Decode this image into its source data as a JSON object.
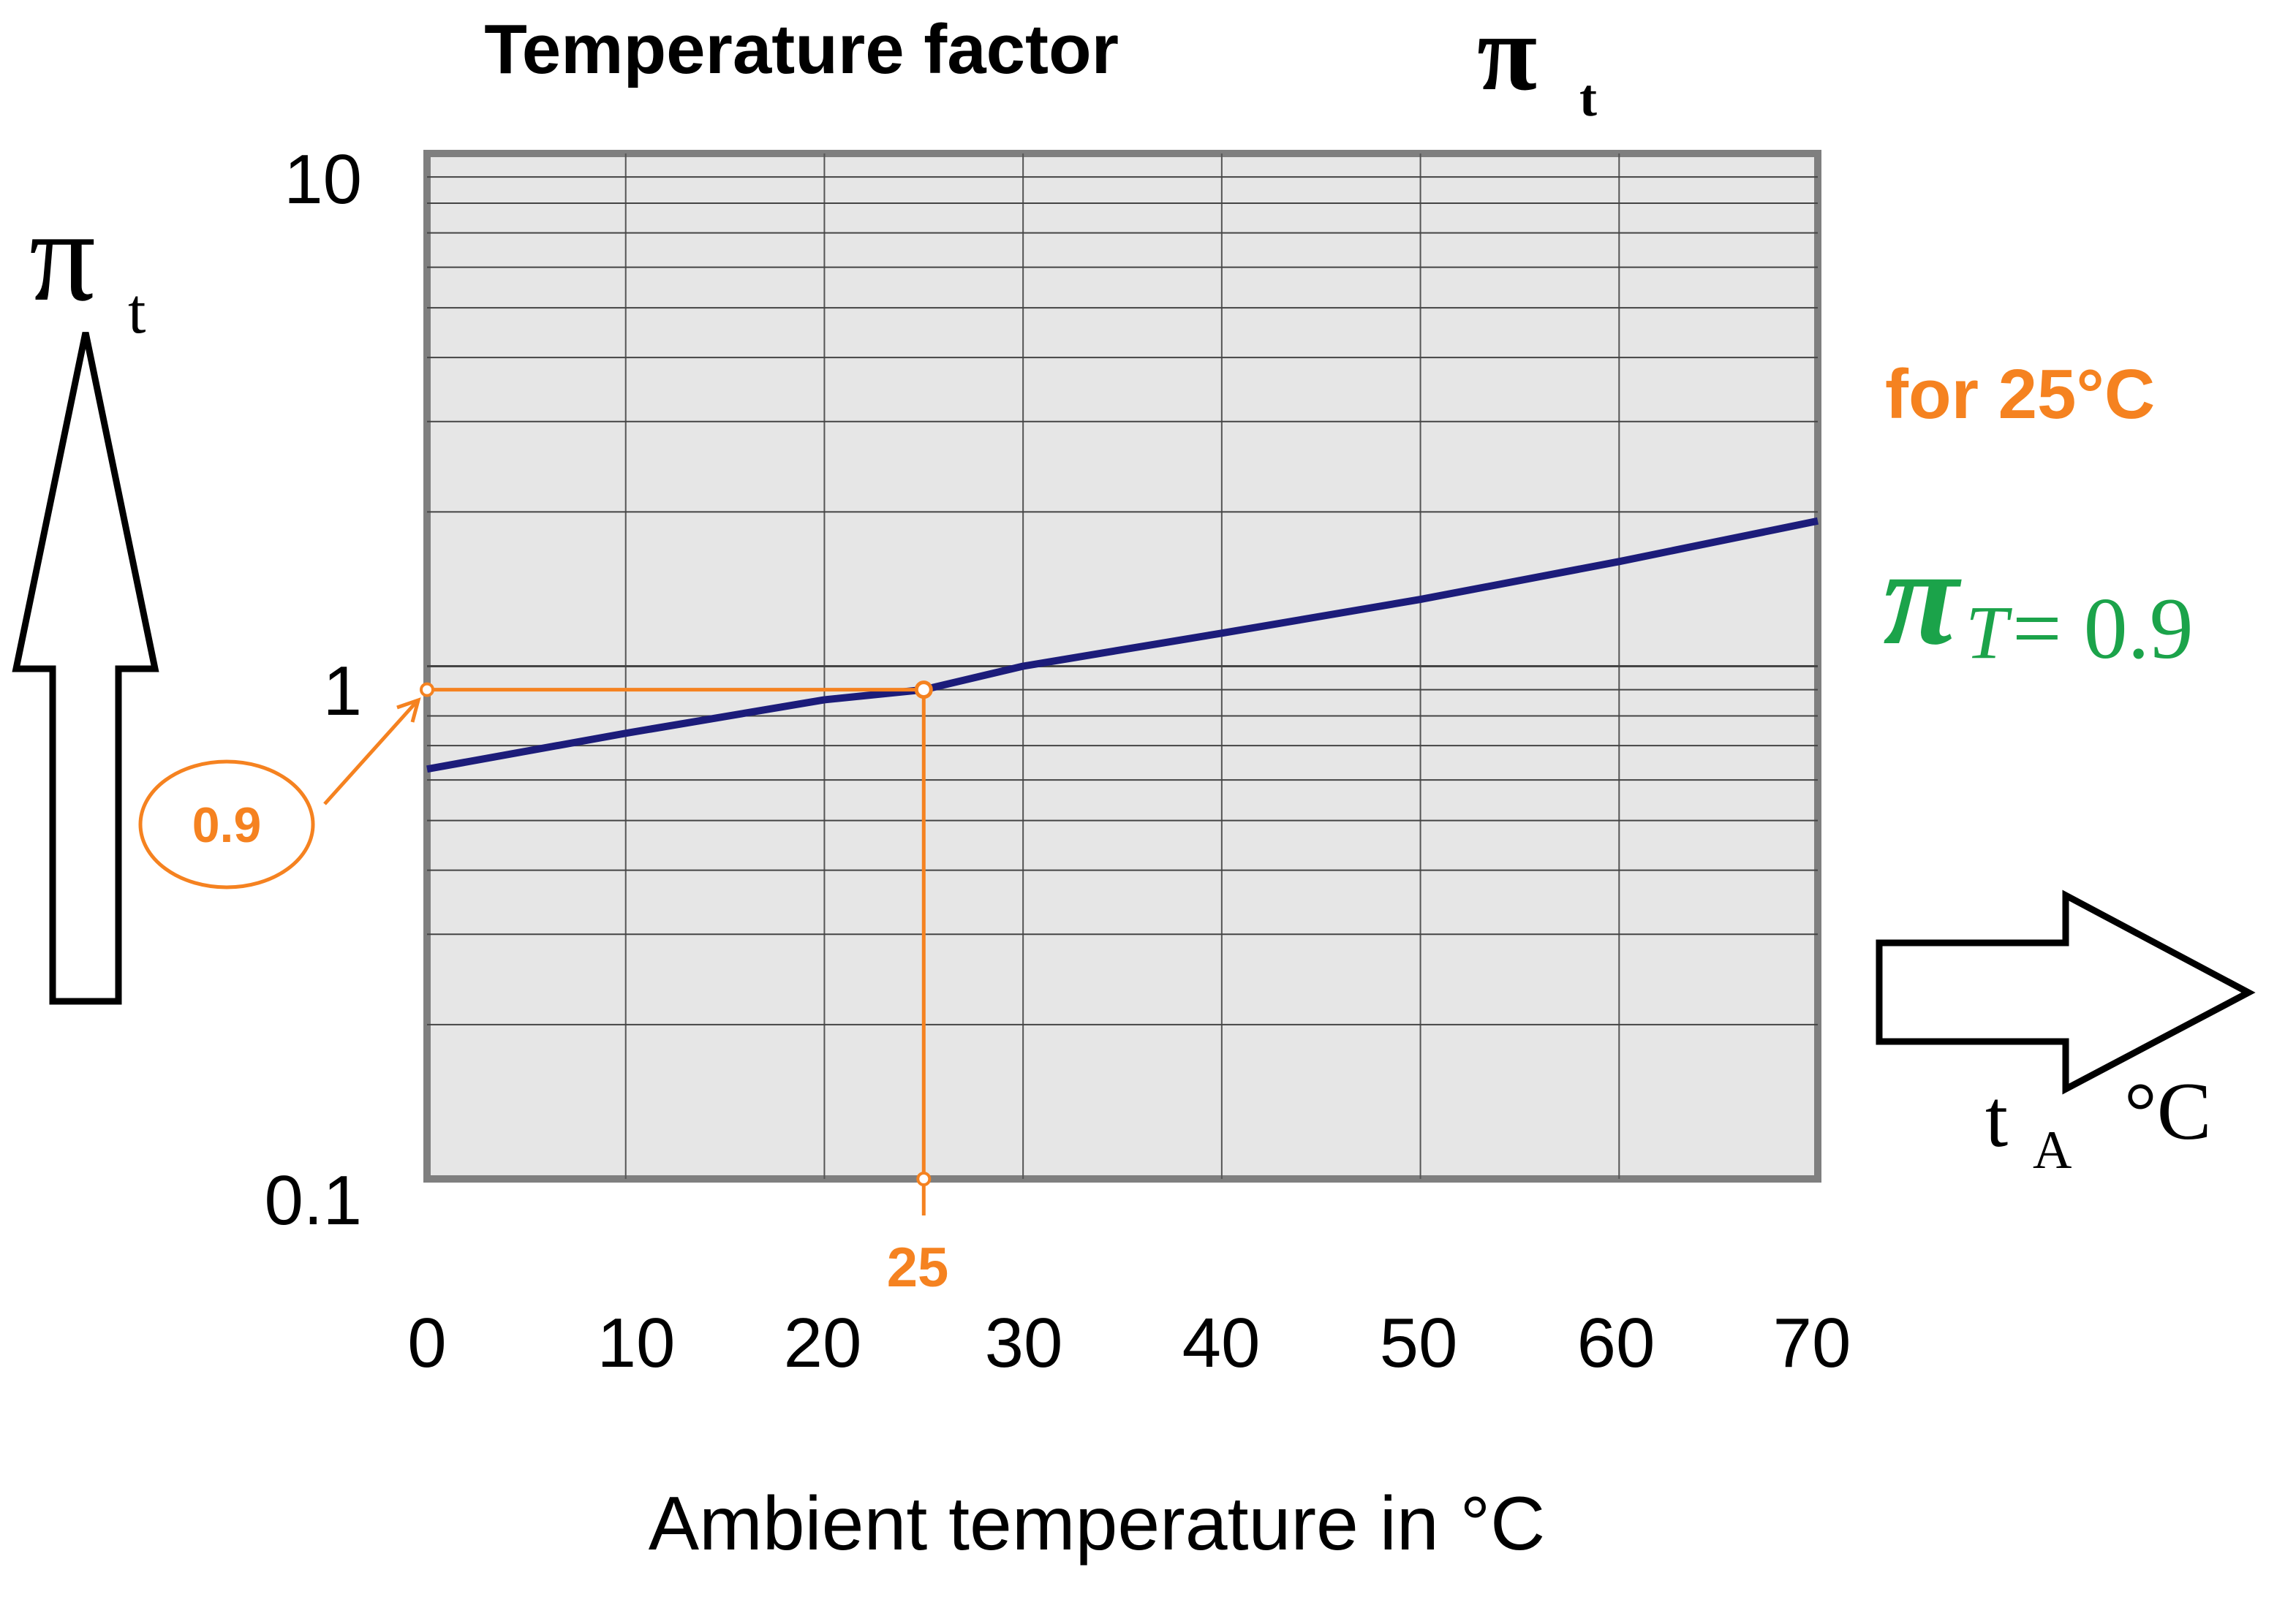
{
  "chart_data": {
    "type": "line",
    "title_text": "Temperature factor",
    "title_symbol": "π",
    "title_subscript": "t",
    "y_axis_symbol": "π",
    "y_axis_subscript": "t",
    "x_axis_symbol": "t",
    "x_axis_subscript": "A",
    "x_axis_unit": "°C",
    "xlabel": "Ambient temperature in °C",
    "y_scale": "log",
    "xlim": [
      0,
      70
    ],
    "ylim": [
      0.1,
      10
    ],
    "x_ticks": [
      0,
      10,
      20,
      30,
      40,
      50,
      60,
      70
    ],
    "x_tick_labels": [
      "0",
      "10",
      "20",
      "30",
      "40",
      "50",
      "60",
      "70"
    ],
    "y_tick_labels": [
      "10",
      "1",
      "0.1"
    ],
    "y_tick_values": [
      10,
      1,
      0.1
    ],
    "grid": true,
    "series": [
      {
        "name": "pi_t",
        "color": "#1c1c7a",
        "x": [
          0,
          10,
          20,
          25,
          30,
          40,
          50,
          60,
          70
        ],
        "y": [
          0.63,
          0.74,
          0.86,
          0.9,
          1.0,
          1.16,
          1.35,
          1.6,
          1.92
        ]
      }
    ],
    "annotation": {
      "color": "#f58220",
      "x_value": 25,
      "y_value": 0.9,
      "x_label": "25",
      "y_label": "0.9",
      "note_text": "for 25°C",
      "result_symbol": "π",
      "result_subscript": "T",
      "result_equation": "= 0.9",
      "result_color": "#1ba34a"
    }
  }
}
